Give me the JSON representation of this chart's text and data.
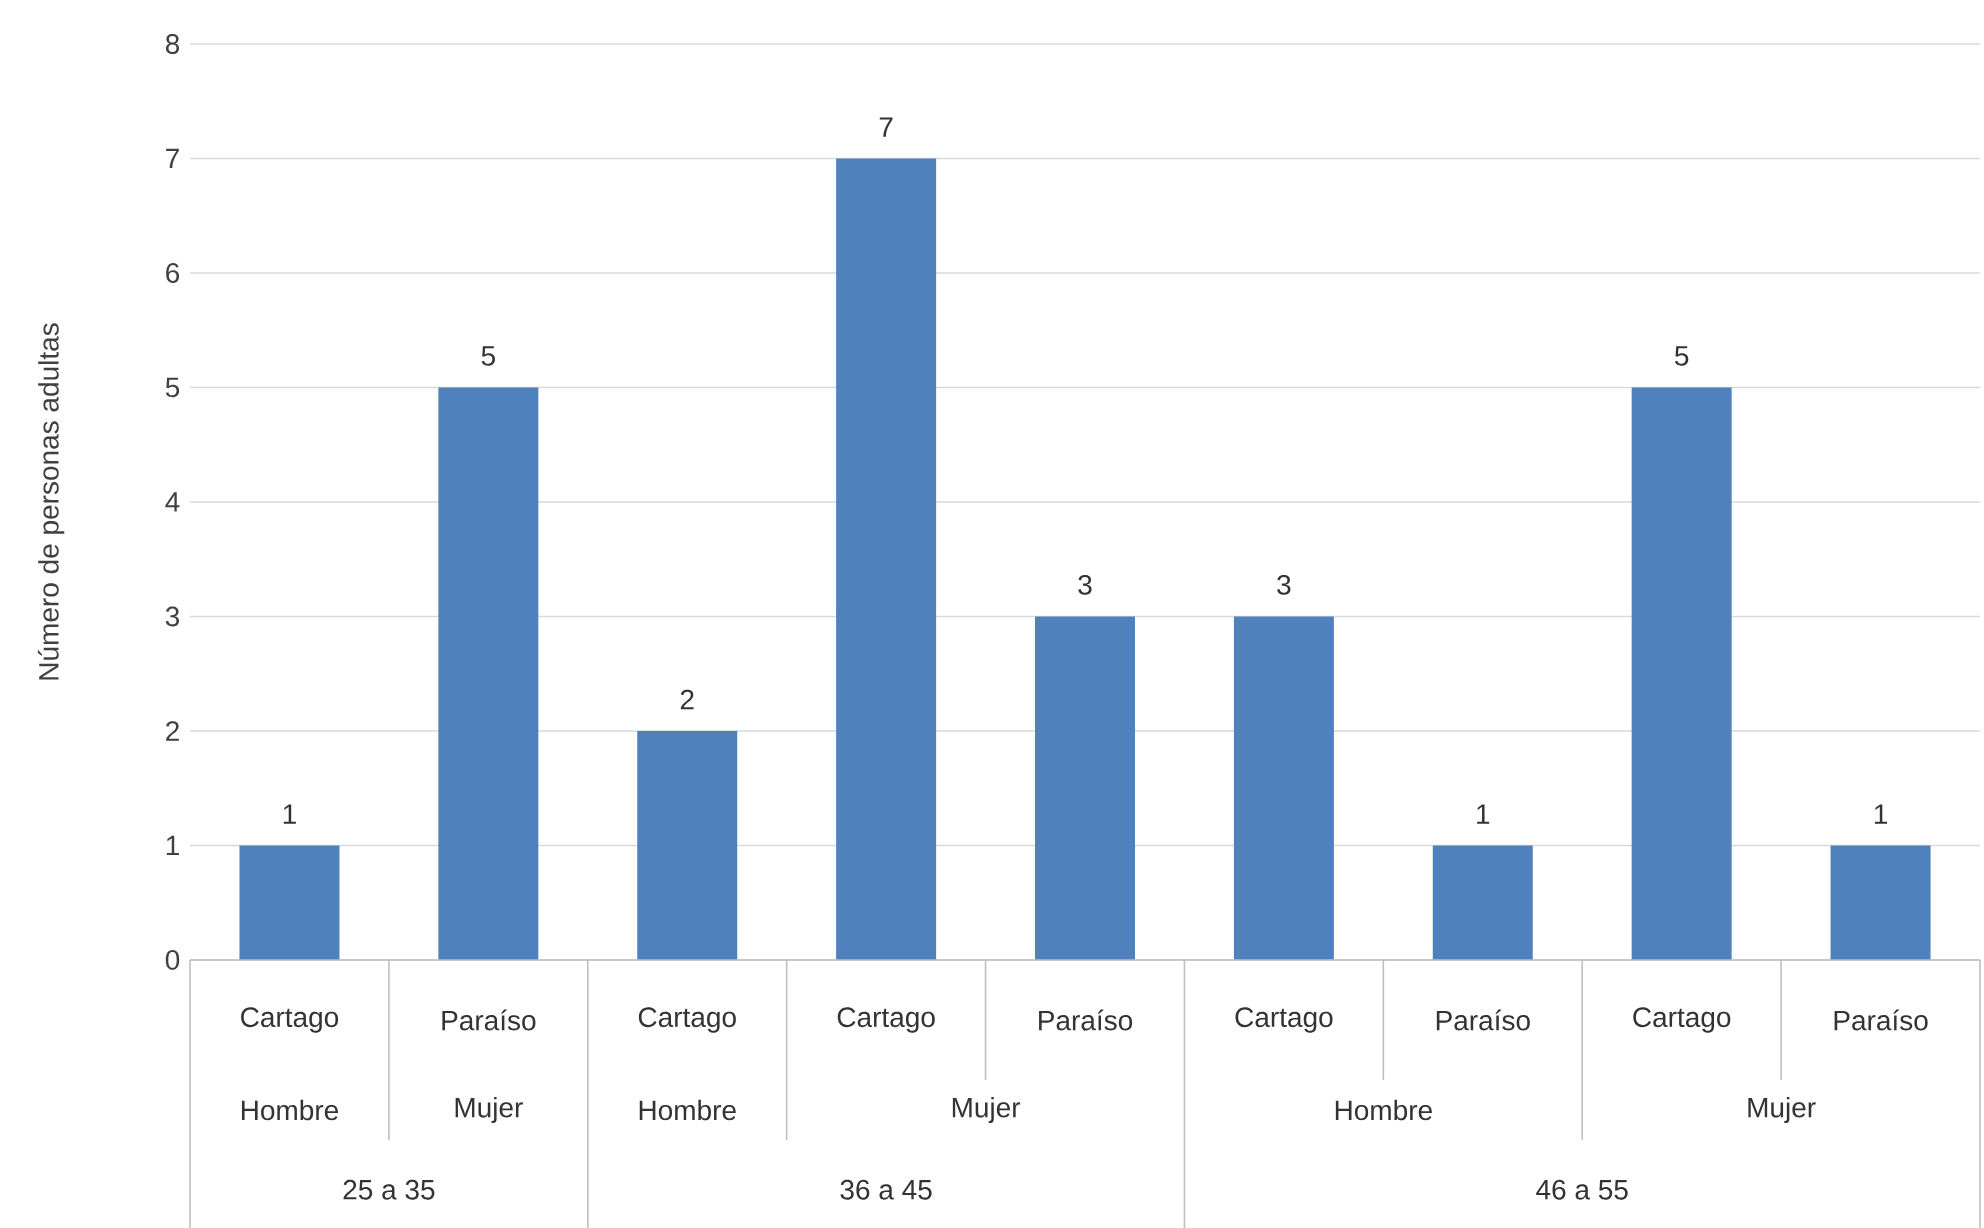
{
  "chart_data": {
    "type": "bar",
    "ylabel": "Número de personas adultas",
    "categories": [
      "Cartago",
      "Paraíso",
      "Cartago",
      "Cartago",
      "Paraíso",
      "Cartago",
      "Paraíso",
      "Cartago",
      "Paraíso"
    ],
    "values": [
      1,
      5,
      2,
      7,
      3,
      3,
      1,
      5,
      1
    ],
    "color": "#4f81bd",
    "ylim": [
      0,
      8
    ],
    "yticks": [
      0,
      1,
      2,
      3,
      4,
      5,
      6,
      7,
      8
    ],
    "grid": "y",
    "data_labels": true,
    "annotations": [
      "Hombre",
      "Mujer",
      "Hombre",
      "Mujer",
      "Hombre",
      "Mujer",
      "25 a 35",
      "36 a 45",
      "46 a 55"
    ]
  }
}
